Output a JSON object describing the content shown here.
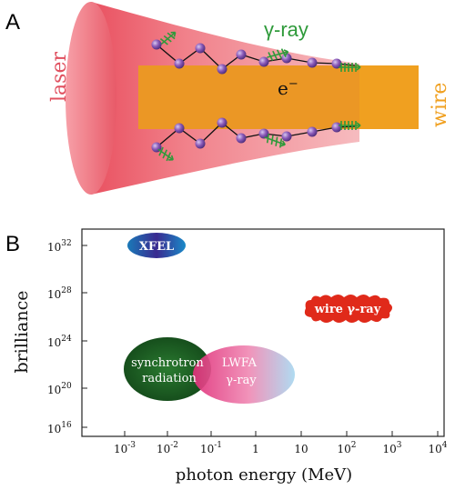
{
  "panel_a": {
    "label": "A",
    "laser_label": "laser",
    "gamma_label": "γ-ray",
    "electron_label": "e",
    "electron_sup": "−",
    "wire_label": "wire"
  },
  "panel_b": {
    "label": "B",
    "ylabel": "brilliance",
    "xlabel": "photon energy (MeV)",
    "y_ticks": [
      {
        "base": "10",
        "exp": "32"
      },
      {
        "base": "10",
        "exp": "28"
      },
      {
        "base": "10",
        "exp": "24"
      },
      {
        "base": "10",
        "exp": "20"
      },
      {
        "base": "10",
        "exp": "16"
      }
    ],
    "x_ticks": [
      {
        "base": "10",
        "exp": "-3",
        "plain": ""
      },
      {
        "base": "10",
        "exp": "-2",
        "plain": ""
      },
      {
        "base": "10",
        "exp": "-1",
        "plain": ""
      },
      {
        "base": "",
        "exp": "",
        "plain": "1"
      },
      {
        "base": "",
        "exp": "",
        "plain": "10"
      },
      {
        "base": "10",
        "exp": "2",
        "plain": ""
      },
      {
        "base": "10",
        "exp": "3",
        "plain": ""
      },
      {
        "base": "10",
        "exp": "4",
        "plain": ""
      }
    ],
    "regions": {
      "xfel": "XFEL",
      "synchrotron_line1": "synchrotron",
      "synchrotron_line2": "radiation",
      "lwfa_line1": "LWFA",
      "lwfa_line2": "γ-ray",
      "wire": "wire γ-ray"
    }
  },
  "colors": {
    "laser": "#e0505f",
    "wire": "#f0a020",
    "gamma": "#2e9a3a",
    "electron": "#7a4aa0",
    "xfel": "#3a3aa0",
    "synchrotron": "#1e6a2a",
    "lwfa": "#e05a9a",
    "wire_region": "#e02a1a"
  }
}
